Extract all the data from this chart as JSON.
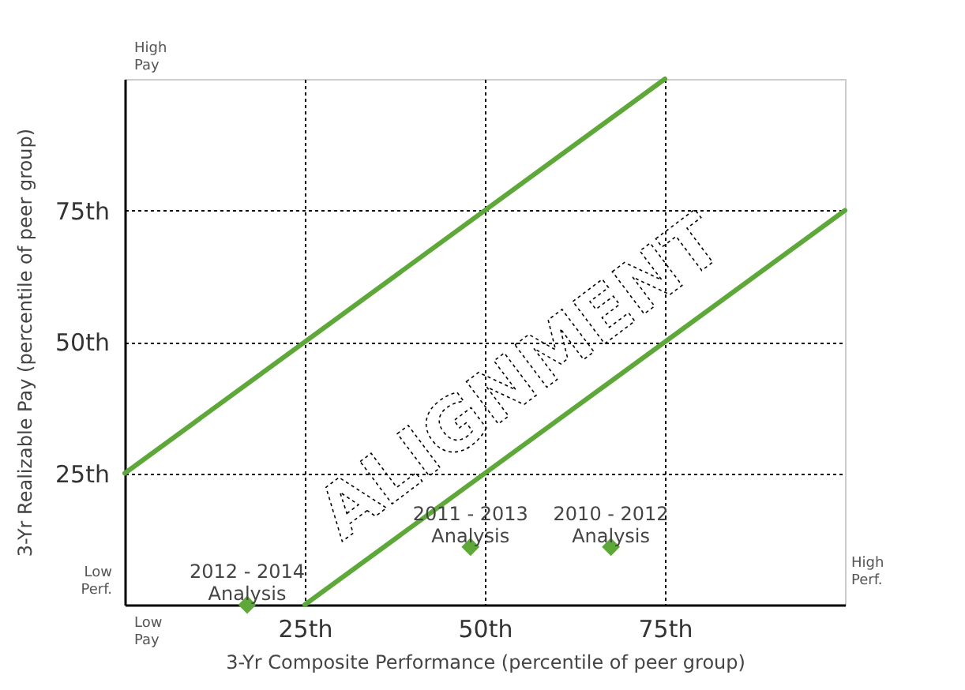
{
  "chart_data": {
    "type": "line",
    "xlabel": "3-Yr Composite Performance (percentile of peer group)",
    "ylabel": "3-Yr Realizable Pay (percentile of peer group)",
    "xlim": [
      0,
      100
    ],
    "ylim": [
      0,
      100
    ],
    "xticks": [
      {
        "value": 25,
        "label": "25th"
      },
      {
        "value": 50,
        "label": "50th"
      },
      {
        "value": 75,
        "label": "75th"
      }
    ],
    "yticks": [
      {
        "value": 25,
        "label": "25th"
      },
      {
        "value": 50,
        "label": "50th"
      },
      {
        "value": 75,
        "label": "75th"
      }
    ],
    "grid": true,
    "line_style": "solid",
    "series": [
      {
        "type": "line",
        "color": "#5ea83a",
        "x": [
          0,
          75
        ],
        "values": [
          25,
          100
        ],
        "marker": "none"
      },
      {
        "type": "line",
        "color": "#5ea83a",
        "x": [
          25,
          100
        ],
        "values": [
          0,
          75
        ],
        "marker": "none"
      },
      {
        "type": "scatter",
        "color": "#5ea83a",
        "x": [
          17,
          48,
          67.5
        ],
        "values": [
          0,
          11,
          11
        ],
        "marker": "diamond"
      }
    ],
    "annotations": [
      "High\nPay",
      "Low\nPay",
      "Low\nPerf.",
      "High\nPerf.",
      "ALIGNMENT",
      {
        "text": "2012 - 2014\nAnalysis",
        "x": 17,
        "y": 0
      },
      {
        "text": "2011 - 2013\nAnalysis",
        "x": 48,
        "y": 11
      },
      {
        "text": "2010 - 2012\nAnalysis",
        "x": 67.5,
        "y": 11
      }
    ]
  }
}
